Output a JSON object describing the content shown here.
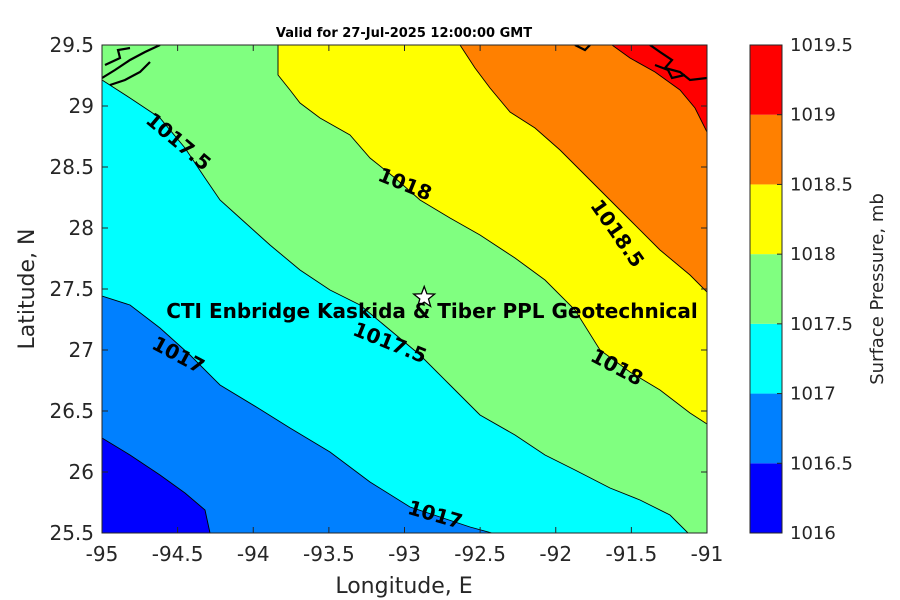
{
  "chart_data": {
    "type": "heatmap",
    "title": "Valid for 27-Jul-2025 12:00:00 GMT",
    "xlabel": "Longitude, E",
    "ylabel": "Latitude, N",
    "xlim": [
      -95,
      -91
    ],
    "ylim": [
      25.5,
      29.5
    ],
    "x_ticks": [
      "-95",
      "-94.5",
      "-94",
      "-93.5",
      "-93",
      "-92.5",
      "-92",
      "-91.5",
      "-91"
    ],
    "y_ticks": [
      "25.5",
      "26",
      "26.5",
      "27",
      "27.5",
      "28",
      "28.5",
      "29",
      "29.5"
    ],
    "colorbar": {
      "label": "Surface Pressure, mb",
      "levels": [
        1016,
        1016.5,
        1017,
        1017.5,
        1018,
        1018.5,
        1019,
        1019.5
      ],
      "level_labels": [
        "1016",
        "1016.5",
        "1017",
        "1017.5",
        "1018",
        "1018.5",
        "1019",
        "1019.5"
      ],
      "colors": [
        "#0000ff",
        "#0080ff",
        "#00ffff",
        "#80ff80",
        "#ffff00",
        "#ff8000",
        "#ff0000",
        "#800000"
      ]
    },
    "contour_labels": [
      {
        "text": "1017.5",
        "lon": -94.5,
        "lat": 28.7
      },
      {
        "text": "1018",
        "lon": -93.0,
        "lat": 28.35
      },
      {
        "text": "1018.5",
        "lon": -91.6,
        "lat": 27.95
      },
      {
        "text": "1017.5",
        "lon": -93.1,
        "lat": 27.05
      },
      {
        "text": "1017",
        "lon": -94.5,
        "lat": 26.95
      },
      {
        "text": "1018",
        "lon": -91.6,
        "lat": 26.85
      },
      {
        "text": "1017",
        "lon": -92.8,
        "lat": 25.64
      }
    ],
    "site": {
      "name": "CTI Enbridge  Kaskida & Tiber PPL Geotechnical",
      "lon": -92.87,
      "lat": 27.43
    }
  }
}
